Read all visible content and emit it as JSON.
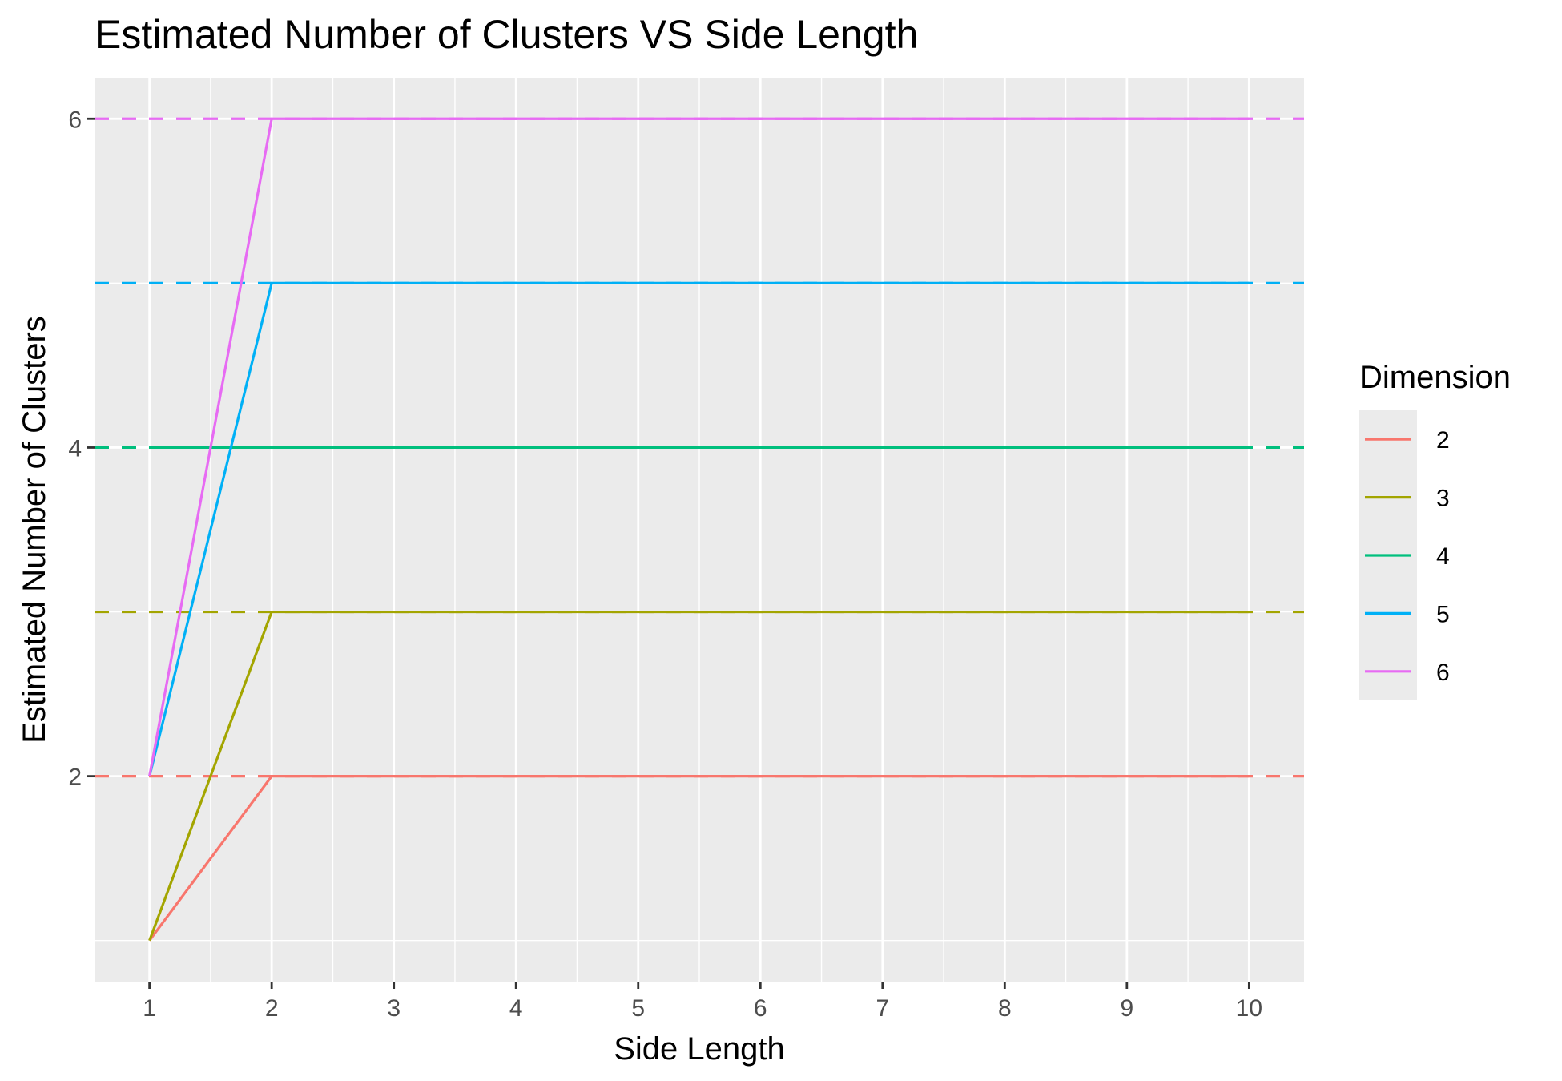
{
  "chart_data": {
    "type": "line",
    "title": "Estimated Number of Clusters VS Side Length",
    "xlabel": "Side Length",
    "ylabel": "Estimated Number of Clusters",
    "x": [
      1,
      2,
      3,
      4,
      5,
      6,
      7,
      8,
      9,
      10
    ],
    "xlim": [
      0.55,
      10.45
    ],
    "ylim": [
      0.75,
      6.25
    ],
    "x_ticks": [
      1,
      2,
      3,
      4,
      5,
      6,
      7,
      8,
      9,
      10
    ],
    "y_ticks": [
      2,
      4,
      6
    ],
    "y_minor_ticks": [
      1,
      3,
      5
    ],
    "grid": true,
    "legend": {
      "title": "Dimension",
      "position": "right"
    },
    "series": [
      {
        "name": "2",
        "color": "#F8766D",
        "values": [
          1,
          2,
          2,
          2,
          2,
          2,
          2,
          2,
          2,
          2
        ],
        "reference": 2
      },
      {
        "name": "3",
        "color": "#A3A500",
        "values": [
          1,
          3,
          3,
          3,
          3,
          3,
          3,
          3,
          3,
          3
        ],
        "reference": 3
      },
      {
        "name": "4",
        "color": "#00BF7D",
        "values": [
          4,
          4,
          4,
          4,
          4,
          4,
          4,
          4,
          4,
          4
        ],
        "reference": 4
      },
      {
        "name": "5",
        "color": "#00B0F6",
        "values": [
          2,
          5,
          5,
          5,
          5,
          5,
          5,
          5,
          5,
          5
        ],
        "reference": 5
      },
      {
        "name": "6",
        "color": "#E76BF3",
        "values": [
          2,
          6,
          6,
          6,
          6,
          6,
          6,
          6,
          6,
          6
        ],
        "reference": 6
      }
    ],
    "reference_lines": "dashed horizontal line per series at its dimension value"
  }
}
